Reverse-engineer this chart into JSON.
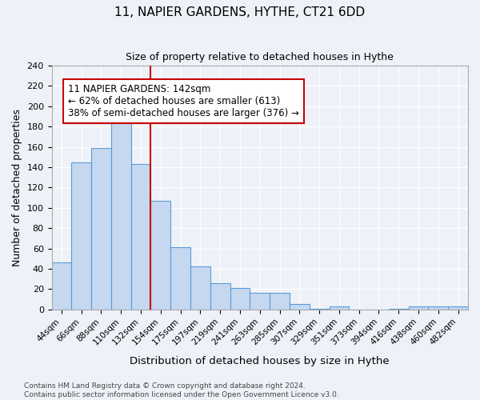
{
  "title": "11, NAPIER GARDENS, HYTHE, CT21 6DD",
  "subtitle": "Size of property relative to detached houses in Hythe",
  "xlabel": "Distribution of detached houses by size in Hythe",
  "ylabel": "Number of detached properties",
  "bar_labels": [
    "44sqm",
    "66sqm",
    "88sqm",
    "110sqm",
    "132sqm",
    "154sqm",
    "175sqm",
    "197sqm",
    "219sqm",
    "241sqm",
    "263sqm",
    "285sqm",
    "307sqm",
    "329sqm",
    "351sqm",
    "373sqm",
    "394sqm",
    "416sqm",
    "438sqm",
    "460sqm",
    "482sqm"
  ],
  "bar_heights": [
    46,
    145,
    159,
    201,
    143,
    107,
    61,
    42,
    26,
    21,
    16,
    16,
    5,
    1,
    3,
    0,
    0,
    1,
    3,
    3,
    3
  ],
  "bar_color": "#c5d8f0",
  "bar_edge_color": "#5b9bd5",
  "vline_x": 4.5,
  "vline_color": "#cc0000",
  "ylim": [
    0,
    240
  ],
  "yticks": [
    0,
    20,
    40,
    60,
    80,
    100,
    120,
    140,
    160,
    180,
    200,
    220,
    240
  ],
  "annotation_title": "11 NAPIER GARDENS: 142sqm",
  "annotation_line1": "← 62% of detached houses are smaller (613)",
  "annotation_line2": "38% of semi-detached houses are larger (376) →",
  "annotation_box_color": "#ffffff",
  "annotation_box_edge": "#cc0000",
  "footer1": "Contains HM Land Registry data © Crown copyright and database right 2024.",
  "footer2": "Contains public sector information licensed under the Open Government Licence v3.0.",
  "background_color": "#eef2f8",
  "grid_color": "#ffffff"
}
